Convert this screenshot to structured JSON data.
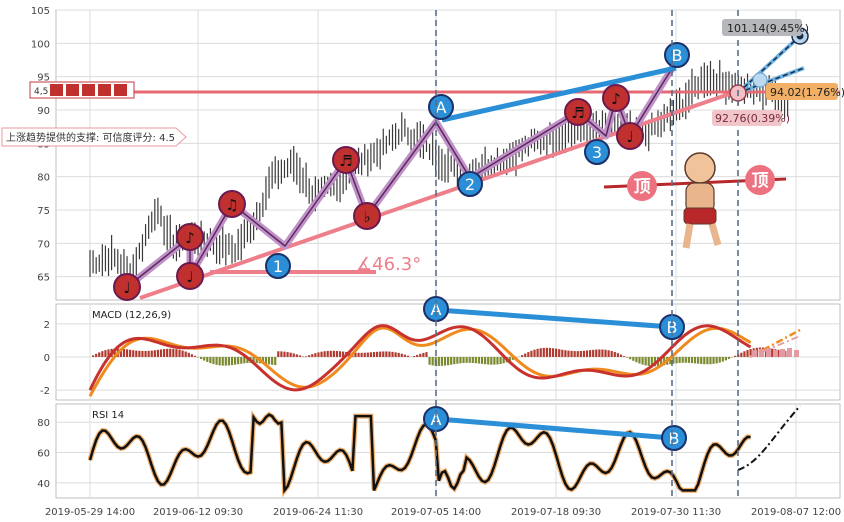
{
  "colors": {
    "panel_bg": "#ffffff",
    "grid": "#dcdcdc",
    "price": "#3a3a3a",
    "pink_trend": "#ee7f8a",
    "purple_zigzag": "#c090c8",
    "blue_line": "#2a8fd6",
    "red_marker": "#c0302e",
    "macd_line": "#c8322e",
    "signal_line": "#f08a1e",
    "hist_pos": "#b03a30",
    "hist_neg": "#7a8a2e",
    "rsi_line": "#111111",
    "rsi_glow": "#f0b070",
    "dashed_v": "#5a6e88"
  },
  "chart_data": [
    {
      "type": "line",
      "panel": "price",
      "yticks": [
        "105",
        "100",
        "95",
        "90",
        "85",
        "80",
        "75",
        "70",
        "65"
      ],
      "ylim": [
        61.5,
        105
      ],
      "x_labels": [
        "2019-05-29 14:00",
        "2019-06-12 09:30",
        "2019-06-24 11:30",
        "2019-07-05 14:00",
        "2019-07-18 09:30",
        "2019-07-30 11:30",
        "2019-08-07 12:00"
      ],
      "price_anchors": [
        [
          0,
          67
        ],
        [
          7,
          68
        ],
        [
          14,
          66
        ],
        [
          21,
          75
        ],
        [
          27,
          70
        ],
        [
          33,
          71
        ],
        [
          40,
          70
        ],
        [
          47,
          69
        ],
        [
          53,
          73
        ],
        [
          59,
          80
        ],
        [
          66,
          82
        ],
        [
          73,
          77
        ],
        [
          80,
          79
        ],
        [
          87,
          82
        ],
        [
          94,
          84
        ],
        [
          101,
          87
        ],
        [
          108,
          85
        ],
        [
          115,
          82
        ],
        [
          122,
          80
        ],
        [
          129,
          82
        ],
        [
          136,
          83
        ],
        [
          143,
          85
        ],
        [
          150,
          86
        ],
        [
          157,
          87
        ],
        [
          164,
          87
        ],
        [
          171,
          88
        ],
        [
          178,
          86
        ],
        [
          185,
          88
        ],
        [
          192,
          91
        ],
        [
          199,
          95
        ],
        [
          206,
          94
        ],
        [
          213,
          93
        ],
        [
          220,
          93
        ],
        [
          226,
          91
        ]
      ],
      "resistance_level": 92.7,
      "annotations": {
        "resistance_left_label": "4,5",
        "support_label": "上涨趋势提供的支撑: 可信度评分: 4.5",
        "angle_label": "∡46.3°",
        "target_high": "101.14(9.45%)",
        "target_mid": "94.02(1.76%)",
        "target_low": "92.76(0.39%)",
        "top_label": "顶"
      },
      "wave_points": [
        {
          "label": "1",
          "value": 66.0
        },
        {
          "label": "2",
          "value": 80.0
        },
        {
          "label": "3",
          "value": 84.0
        },
        {
          "label": "A",
          "value": 89.5
        },
        {
          "label": "B",
          "value": 96.5
        }
      ],
      "notes": [
        "♩",
        "♪",
        "♩",
        "♫",
        "♬",
        "♭",
        "♬",
        "♪"
      ]
    },
    {
      "type": "line",
      "panel": "macd",
      "title": "MACD (12,26,9)",
      "yticks": [
        "2",
        "0",
        "-2"
      ],
      "ylim": [
        -2.6,
        3.2
      ],
      "divergence_labels": [
        "A",
        "B"
      ]
    },
    {
      "type": "line",
      "panel": "rsi",
      "title": "RSI 14",
      "yticks": [
        "80",
        "60",
        "40"
      ],
      "ylim": [
        30,
        92
      ],
      "divergence_labels": [
        "A",
        "B"
      ]
    }
  ]
}
